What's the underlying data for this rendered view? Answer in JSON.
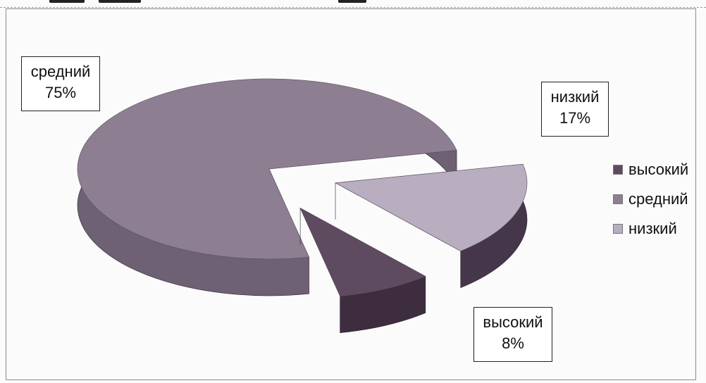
{
  "chart_data": {
    "type": "pie",
    "title": "",
    "categories": [
      "высокий",
      "средний",
      "низкий"
    ],
    "values": [
      8,
      75,
      17
    ],
    "data_labels": [
      {
        "category": "высокий",
        "value": "8%"
      },
      {
        "category": "средний",
        "value": "75%"
      },
      {
        "category": "низкий",
        "value": "17%"
      }
    ],
    "exploded": true,
    "three_d": true,
    "legend_position": "right"
  },
  "legend": {
    "items": [
      {
        "label": "высокий",
        "color": "#5e4b5f"
      },
      {
        "label": "средний",
        "color": "#8d7f91"
      },
      {
        "label": "низкий",
        "color": "#b8aec0"
      }
    ]
  },
  "colors": {
    "high_top": "#5e4b5f",
    "high_side": "#3d2d3e",
    "mid_top": "#8d7f91",
    "mid_side": "#6e6173",
    "low_top": "#b8aec0",
    "low_side": "#46364a"
  }
}
